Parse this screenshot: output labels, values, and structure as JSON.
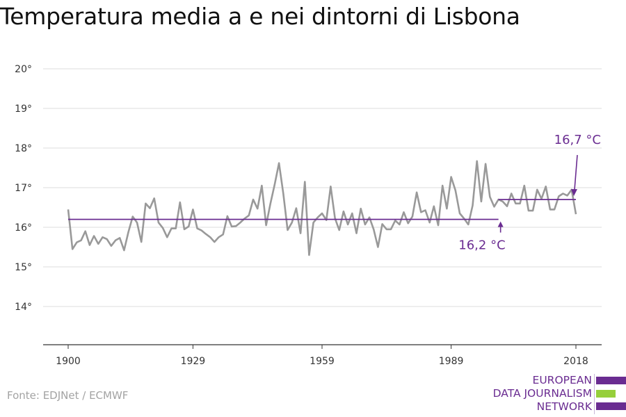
{
  "title": "Temperatura media a e nei dintorni di Lisbona",
  "source": "Fonte: EDJNet / ECMWF",
  "logo": {
    "line1": "EUROPEAN",
    "line2": "DATA JOURNALISM",
    "line3": "NETWORK"
  },
  "colors": {
    "series": "#999999",
    "mean": "#6a2c91",
    "grid": "#dddddd",
    "logo_purple": "#6a2c91",
    "logo_green": "#96cf3b"
  },
  "chart_data": {
    "type": "line",
    "title": "Temperatura media a e nei dintorni di Lisbona",
    "xlabel": "",
    "ylabel": "",
    "x_ticks": [
      "1900",
      "1929",
      "1959",
      "1989",
      "2018"
    ],
    "y_ticks": [
      "14°",
      "15°",
      "16°",
      "17°",
      "18°",
      "19°",
      "20°"
    ],
    "ylim": [
      13,
      20
    ],
    "xlim": [
      1900,
      2018
    ],
    "grid": true,
    "series": [
      {
        "values": [
          [
            1900,
            16.45
          ],
          [
            1901,
            15.45
          ],
          [
            1902,
            15.62
          ],
          [
            1903,
            15.67
          ],
          [
            1904,
            15.9
          ],
          [
            1905,
            15.55
          ],
          [
            1906,
            15.78
          ],
          [
            1907,
            15.58
          ],
          [
            1908,
            15.75
          ],
          [
            1909,
            15.7
          ],
          [
            1910,
            15.53
          ],
          [
            1911,
            15.67
          ],
          [
            1912,
            15.73
          ],
          [
            1913,
            15.42
          ],
          [
            1914,
            15.88
          ],
          [
            1915,
            16.27
          ],
          [
            1916,
            16.12
          ],
          [
            1917,
            15.63
          ],
          [
            1918,
            16.6
          ],
          [
            1919,
            16.48
          ],
          [
            1920,
            16.73
          ],
          [
            1921,
            16.12
          ],
          [
            1922,
            15.98
          ],
          [
            1923,
            15.75
          ],
          [
            1924,
            15.97
          ],
          [
            1925,
            15.97
          ],
          [
            1926,
            16.63
          ],
          [
            1927,
            15.95
          ],
          [
            1928,
            16.02
          ],
          [
            1929,
            16.45
          ],
          [
            1930,
            15.97
          ],
          [
            1931,
            15.92
          ],
          [
            1932,
            15.83
          ],
          [
            1933,
            15.75
          ],
          [
            1934,
            15.63
          ],
          [
            1935,
            15.75
          ],
          [
            1936,
            15.82
          ],
          [
            1937,
            16.28
          ],
          [
            1938,
            16.02
          ],
          [
            1939,
            16.03
          ],
          [
            1940,
            16.12
          ],
          [
            1941,
            16.22
          ],
          [
            1942,
            16.3
          ],
          [
            1943,
            16.7
          ],
          [
            1944,
            16.47
          ],
          [
            1945,
            17.05
          ],
          [
            1946,
            16.05
          ],
          [
            1947,
            16.6
          ],
          [
            1948,
            17.08
          ],
          [
            1949,
            17.62
          ],
          [
            1950,
            16.85
          ],
          [
            1951,
            15.93
          ],
          [
            1952,
            16.12
          ],
          [
            1953,
            16.48
          ],
          [
            1954,
            15.85
          ],
          [
            1955,
            17.15
          ],
          [
            1956,
            15.3
          ],
          [
            1957,
            16.12
          ],
          [
            1958,
            16.25
          ],
          [
            1959,
            16.35
          ],
          [
            1960,
            16.18
          ],
          [
            1961,
            17.03
          ],
          [
            1962,
            16.23
          ],
          [
            1963,
            15.93
          ],
          [
            1964,
            16.4
          ],
          [
            1965,
            16.07
          ],
          [
            1966,
            16.35
          ],
          [
            1967,
            15.85
          ],
          [
            1968,
            16.47
          ],
          [
            1969,
            16.07
          ],
          [
            1970,
            16.25
          ],
          [
            1971,
            15.95
          ],
          [
            1972,
            15.5
          ],
          [
            1973,
            16.08
          ],
          [
            1974,
            15.95
          ],
          [
            1975,
            15.95
          ],
          [
            1976,
            16.17
          ],
          [
            1977,
            16.07
          ],
          [
            1978,
            16.38
          ],
          [
            1979,
            16.1
          ],
          [
            1980,
            16.27
          ],
          [
            1981,
            16.88
          ],
          [
            1982,
            16.38
          ],
          [
            1983,
            16.43
          ],
          [
            1984,
            16.12
          ],
          [
            1985,
            16.53
          ],
          [
            1986,
            16.05
          ],
          [
            1987,
            17.05
          ],
          [
            1988,
            16.47
          ],
          [
            1989,
            17.27
          ],
          [
            1990,
            16.93
          ],
          [
            1991,
            16.35
          ],
          [
            1992,
            16.22
          ],
          [
            1993,
            16.07
          ],
          [
            1994,
            16.55
          ],
          [
            1995,
            17.67
          ],
          [
            1996,
            16.65
          ],
          [
            1997,
            17.6
          ],
          [
            1998,
            16.77
          ],
          [
            1999,
            16.52
          ],
          [
            2000,
            16.7
          ],
          [
            2001,
            16.65
          ],
          [
            2002,
            16.53
          ],
          [
            2003,
            16.85
          ],
          [
            2004,
            16.6
          ],
          [
            2005,
            16.6
          ],
          [
            2006,
            17.05
          ],
          [
            2007,
            16.42
          ],
          [
            2008,
            16.42
          ],
          [
            2009,
            16.95
          ],
          [
            2010,
            16.72
          ],
          [
            2011,
            17.03
          ],
          [
            2012,
            16.45
          ],
          [
            2013,
            16.45
          ],
          [
            2014,
            16.78
          ],
          [
            2015,
            16.85
          ],
          [
            2016,
            16.8
          ],
          [
            2017,
            16.95
          ],
          [
            2018,
            16.33
          ]
        ]
      }
    ],
    "reference_lines": [
      {
        "label": "16,2 °C",
        "value": 16.2,
        "x_start": 1900,
        "x_end": 2000
      },
      {
        "label": "16,7 °C",
        "value": 16.7,
        "x_start": 2000,
        "x_end": 2018
      }
    ]
  }
}
